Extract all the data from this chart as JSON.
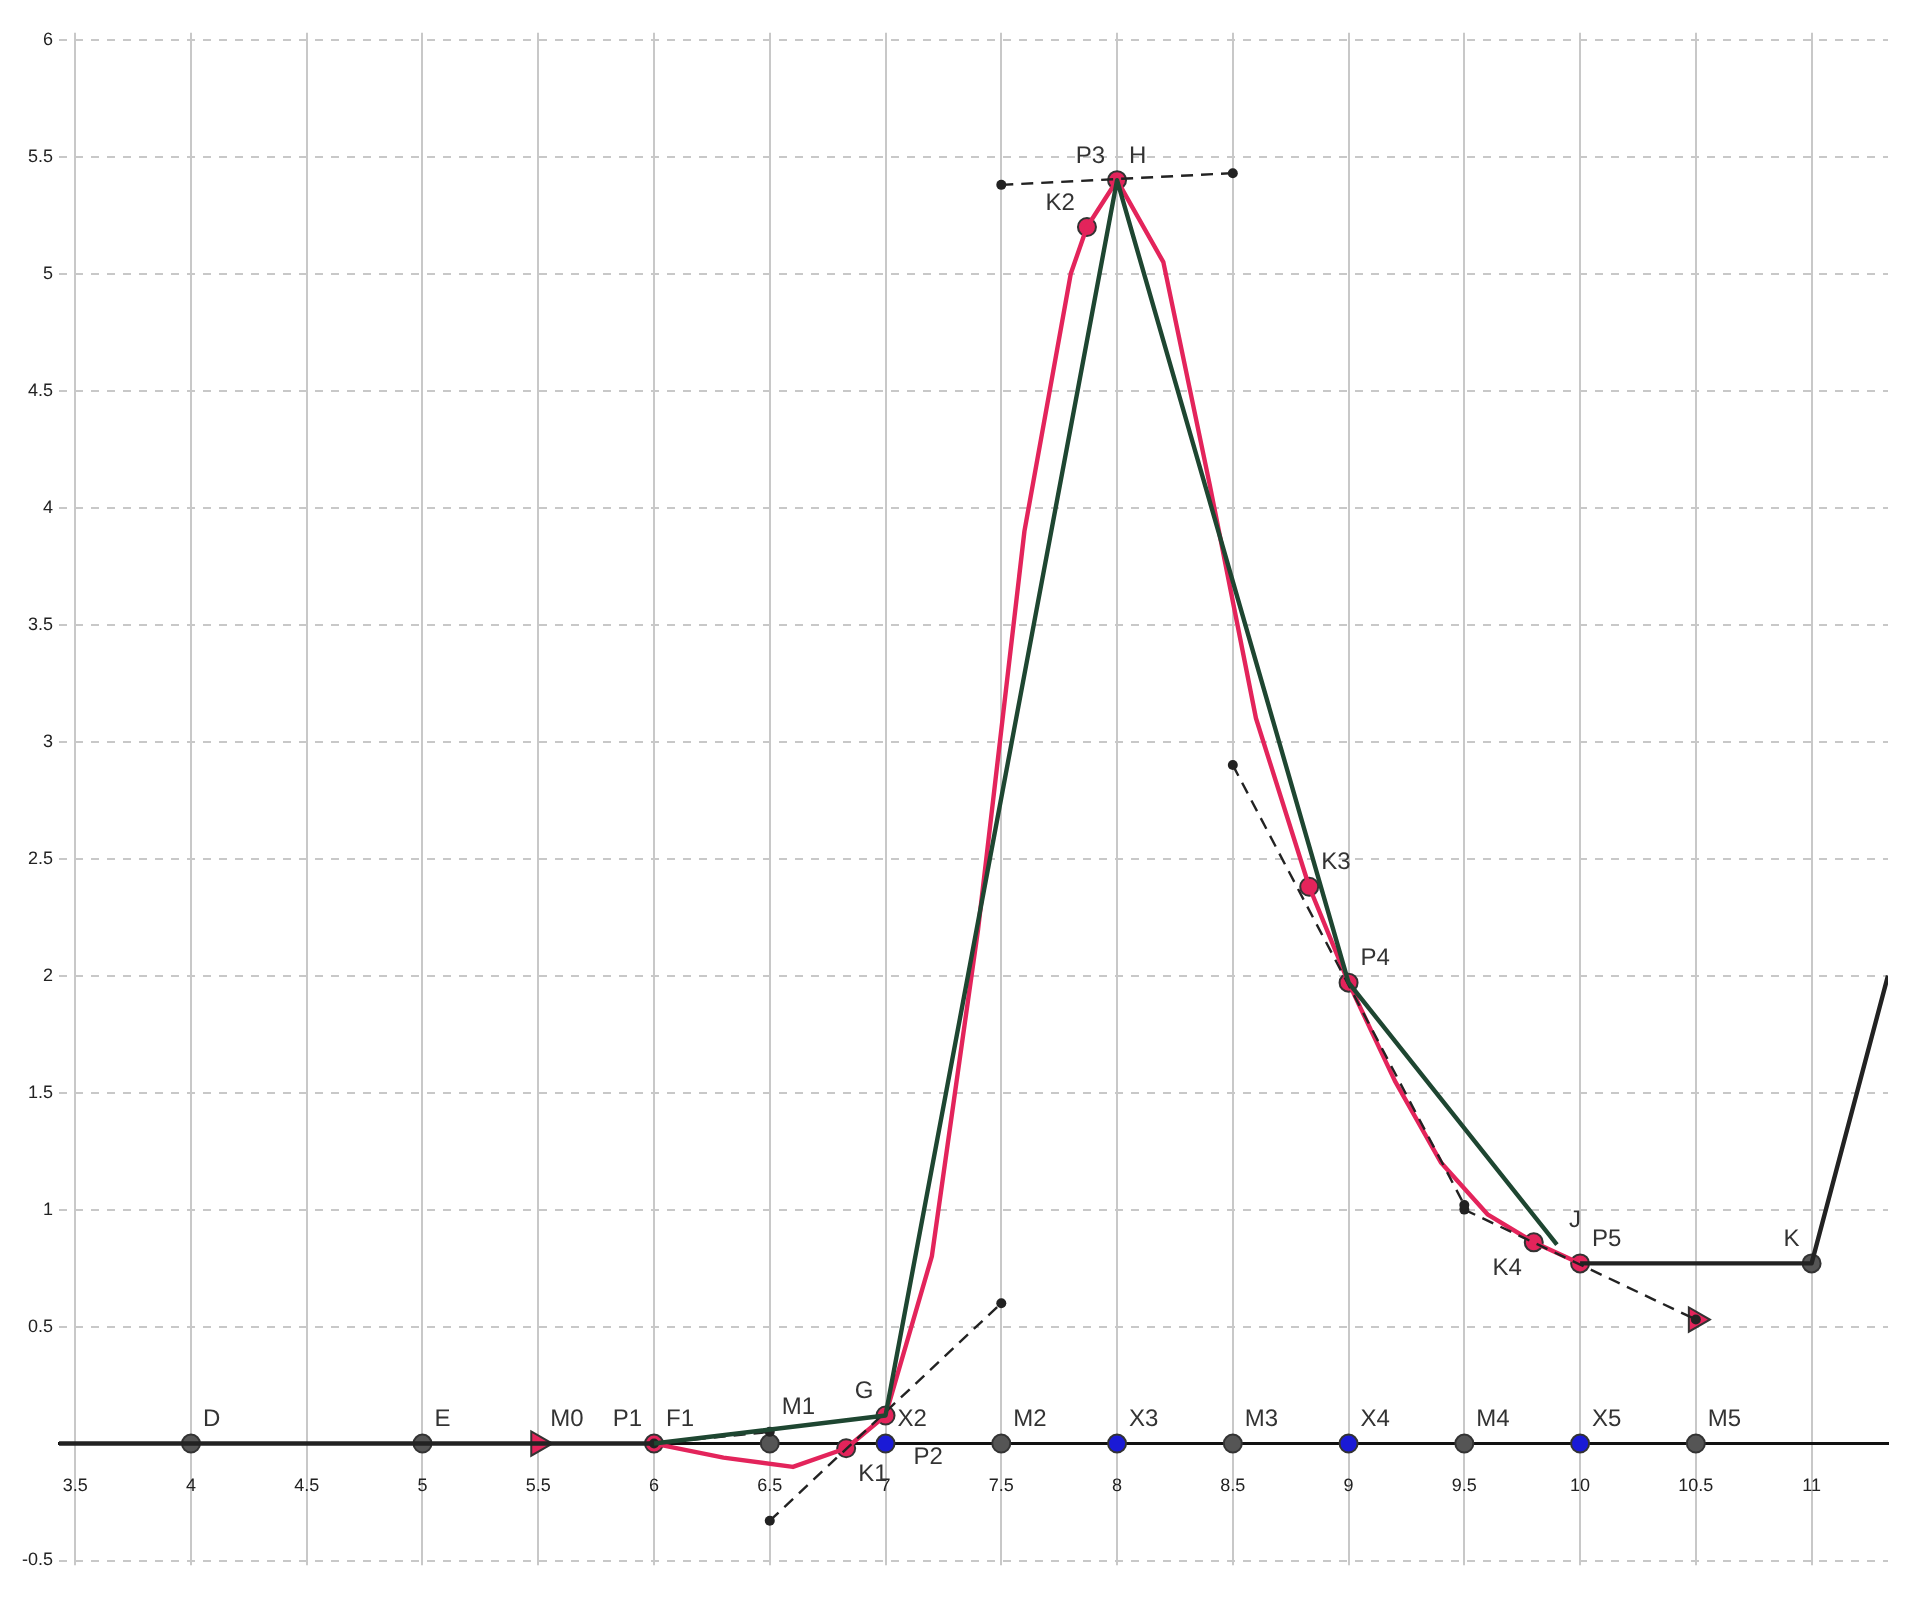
{
  "chart_data": {
    "type": "line",
    "xlim": [
      3.43,
      11.33
    ],
    "ylim": [
      -0.52,
      6.03
    ],
    "xticks": [
      3.5,
      4,
      4.5,
      5,
      5.5,
      6,
      6.5,
      7,
      7.5,
      8,
      8.5,
      9,
      9.5,
      10,
      10.5,
      11
    ],
    "yticks": [
      -0.5,
      0.5,
      1,
      1.5,
      2,
      2.5,
      3,
      3.5,
      4,
      4.5,
      5,
      5.5,
      6
    ],
    "grid": true,
    "legend": false,
    "series": [
      {
        "type": "line",
        "color": "#222222",
        "line_style": "solid",
        "x": [
          3.43,
          6
        ],
        "values": [
          0,
          0
        ]
      },
      {
        "type": "line",
        "color": "#1e4631",
        "marker": "none",
        "line_style": "solid",
        "x": [
          6,
          7,
          8,
          9,
          9.9
        ],
        "values": [
          0,
          0.12,
          5.4,
          1.97,
          0.85
        ]
      },
      {
        "type": "line",
        "color": "#222222",
        "marker": "none",
        "line_style": "solid",
        "x": [
          10,
          11,
          11.33
        ],
        "values": [
          0.77,
          0.77,
          2.0
        ]
      },
      {
        "type": "line",
        "color": "#222222",
        "marker": "circle",
        "line_style": "dashed",
        "x": [
          6,
          6.5
        ],
        "values": [
          0,
          0.05
        ]
      },
      {
        "type": "line",
        "color": "#222222",
        "marker": "circle",
        "line_style": "dashed",
        "x": [
          6.5,
          7.5
        ],
        "values": [
          -0.33,
          0.6
        ]
      },
      {
        "type": "line",
        "color": "#222222",
        "marker": "circle",
        "line_style": "dashed",
        "x": [
          7.5,
          8.5
        ],
        "values": [
          5.38,
          5.43
        ]
      },
      {
        "type": "line",
        "color": "#222222",
        "marker": "circle",
        "line_style": "dashed",
        "x": [
          8.5,
          9.5
        ],
        "values": [
          2.9,
          1.02
        ]
      },
      {
        "type": "line",
        "color": "#222222",
        "marker": "circle",
        "line_style": "dashed",
        "x": [
          9.5,
          10.5
        ],
        "values": [
          1.0,
          0.53
        ]
      },
      {
        "type": "line",
        "color": "#e3245b",
        "marker": "none",
        "line_style": "solid",
        "x": [
          6,
          6.3,
          6.6,
          6.83,
          7,
          7.2,
          7.4,
          7.6,
          7.8,
          7.87,
          8,
          8.2,
          8.4,
          8.6,
          8.83,
          9,
          9.2,
          9.4,
          9.6,
          9.8,
          10
        ],
        "values": [
          0,
          -0.06,
          -0.1,
          -0.02,
          0.12,
          0.8,
          2.2,
          3.9,
          5.0,
          5.2,
          5.4,
          5.05,
          4.1,
          3.1,
          2.38,
          1.97,
          1.55,
          1.2,
          0.98,
          0.86,
          0.77
        ]
      },
      {
        "type": "scatter",
        "color": "#555555",
        "marker": "circle",
        "x": [
          4,
          5,
          6.5,
          7.5,
          8.5,
          9.5,
          10.5,
          11
        ],
        "values": [
          0,
          0,
          0,
          0,
          0,
          0,
          0,
          0.77
        ]
      },
      {
        "type": "scatter",
        "color": "#1a1ad6",
        "marker": "circle",
        "x": [
          7,
          8,
          9,
          10
        ],
        "values": [
          0,
          0,
          0,
          0
        ]
      },
      {
        "type": "scatter",
        "color": "#e3245b",
        "marker": "circle",
        "x": [
          6,
          6.83,
          7,
          7.87,
          8,
          8.83,
          9,
          9.8,
          10
        ],
        "values": [
          0,
          -0.02,
          0.12,
          5.2,
          5.4,
          2.38,
          1.97,
          0.86,
          0.77
        ]
      },
      {
        "type": "scatter",
        "color": "#e3245b",
        "marker": "triangle",
        "x": [
          5.5,
          10.5
        ],
        "values": [
          0,
          0.53
        ]
      }
    ],
    "annotations": [
      {
        "text": "D",
        "x": 4,
        "y": 0
      },
      {
        "text": "E",
        "x": 5,
        "y": 0
      },
      {
        "text": "M0",
        "x": 5.5,
        "y": 0
      },
      {
        "text": "F1",
        "x": 6,
        "y": 0
      },
      {
        "text": "P1",
        "x": 6,
        "y": 0
      },
      {
        "text": "M1",
        "x": 6.5,
        "y": 0.05
      },
      {
        "text": "K1",
        "x": 6.83,
        "y": -0.02
      },
      {
        "text": "X2",
        "x": 7,
        "y": 0
      },
      {
        "text": "G",
        "x": 7,
        "y": 0.12
      },
      {
        "text": "P2",
        "x": 7,
        "y": 0.12
      },
      {
        "text": "M2",
        "x": 7.5,
        "y": 0
      },
      {
        "text": "X3",
        "x": 8,
        "y": 0
      },
      {
        "text": "M3",
        "x": 8.5,
        "y": 0
      },
      {
        "text": "X4",
        "x": 9,
        "y": 0
      },
      {
        "text": "M4",
        "x": 9.5,
        "y": 0
      },
      {
        "text": "X5",
        "x": 10,
        "y": 0
      },
      {
        "text": "M5",
        "x": 10.5,
        "y": 0
      },
      {
        "text": "K2",
        "x": 7.87,
        "y": 5.2
      },
      {
        "text": "H",
        "x": 8,
        "y": 5.4
      },
      {
        "text": "P3",
        "x": 8,
        "y": 5.4
      },
      {
        "text": "K3",
        "x": 8.83,
        "y": 2.38
      },
      {
        "text": "P4",
        "x": 9,
        "y": 1.97
      },
      {
        "text": "K4",
        "x": 9.8,
        "y": 0.86
      },
      {
        "text": "J",
        "x": 9.9,
        "y": 0.85
      },
      {
        "text": "P5",
        "x": 10,
        "y": 0.77
      },
      {
        "text": "K",
        "x": 11,
        "y": 0.77
      }
    ]
  }
}
